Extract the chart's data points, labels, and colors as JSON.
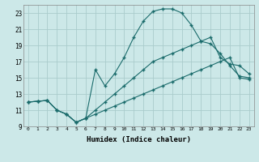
{
  "xlabel": "Humidex (Indice chaleur)",
  "background_color": "#cce8e8",
  "grid_color": "#aacccc",
  "line_color": "#1a6b6b",
  "xlim": [
    -0.5,
    23.5
  ],
  "ylim": [
    9,
    24
  ],
  "xticks": [
    0,
    1,
    2,
    3,
    4,
    5,
    6,
    7,
    8,
    9,
    10,
    11,
    12,
    13,
    14,
    15,
    16,
    17,
    18,
    19,
    20,
    21,
    22,
    23
  ],
  "yticks": [
    9,
    11,
    13,
    15,
    17,
    19,
    21,
    23
  ],
  "line1_x": [
    0,
    1,
    2,
    3,
    4,
    5,
    6,
    7,
    8,
    9,
    10,
    11,
    12,
    13,
    14,
    15,
    16,
    17,
    18,
    19,
    20,
    21,
    22,
    23
  ],
  "line1_y": [
    12.0,
    12.1,
    12.2,
    11.0,
    10.5,
    9.5,
    10.0,
    10.5,
    11.0,
    11.5,
    12.0,
    12.5,
    13.0,
    13.5,
    14.0,
    14.5,
    15.0,
    15.5,
    16.0,
    16.5,
    17.0,
    17.5,
    15.0,
    14.8
  ],
  "line2_x": [
    0,
    1,
    2,
    3,
    4,
    5,
    6,
    7,
    8,
    9,
    10,
    11,
    12,
    13,
    14,
    15,
    16,
    17,
    18,
    19,
    20,
    21,
    22,
    23
  ],
  "line2_y": [
    12.0,
    12.1,
    12.2,
    11.0,
    10.5,
    9.5,
    10.0,
    16.0,
    14.0,
    15.5,
    17.5,
    20.0,
    22.0,
    23.2,
    23.5,
    23.5,
    23.0,
    21.5,
    19.5,
    19.2,
    18.0,
    16.5,
    15.2,
    15.0
  ],
  "line3_x": [
    0,
    1,
    2,
    3,
    4,
    5,
    6,
    7,
    8,
    9,
    10,
    11,
    12,
    13,
    14,
    15,
    16,
    17,
    18,
    19,
    20,
    21,
    22,
    23
  ],
  "line3_y": [
    12.0,
    12.1,
    12.2,
    11.0,
    10.5,
    9.5,
    10.0,
    11.0,
    12.0,
    13.0,
    14.0,
    15.0,
    16.0,
    17.0,
    17.5,
    18.0,
    18.5,
    19.0,
    19.5,
    20.0,
    17.5,
    16.7,
    16.5,
    15.5
  ]
}
